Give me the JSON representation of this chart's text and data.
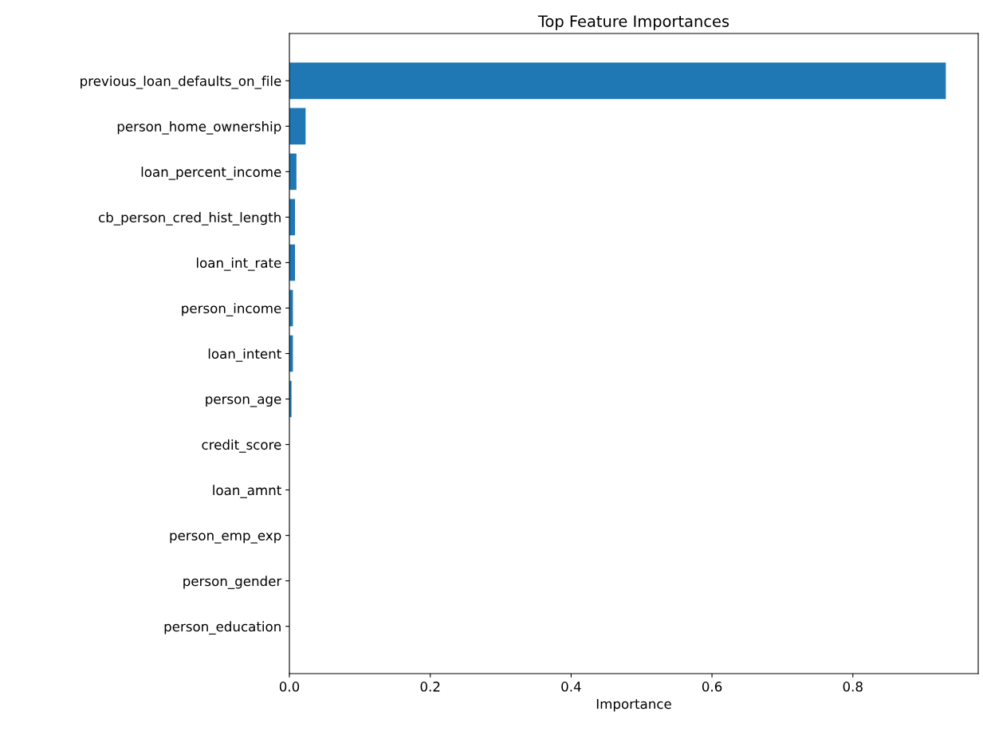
{
  "chart_data": {
    "type": "bar",
    "orientation": "horizontal",
    "title": "Top Feature Importances",
    "xlabel": "Importance",
    "categories": [
      "previous_loan_defaults_on_file",
      "person_home_ownership",
      "loan_percent_income",
      "cb_person_cred_hist_length",
      "loan_int_rate",
      "person_income",
      "loan_intent",
      "person_age",
      "credit_score",
      "loan_amnt",
      "person_emp_exp",
      "person_gender",
      "person_education"
    ],
    "values": [
      0.932,
      0.023,
      0.01,
      0.008,
      0.008,
      0.005,
      0.005,
      0.003,
      0,
      0,
      0,
      0,
      0
    ],
    "color": "#1f77b4",
    "xlim": [
      0,
      0.978
    ],
    "xticks": [
      {
        "value": 0,
        "label": "0.0"
      },
      {
        "value": 0.2,
        "label": "0.2"
      },
      {
        "value": 0.4,
        "label": "0.4"
      },
      {
        "value": 0.6,
        "label": "0.6"
      },
      {
        "value": 0.8,
        "label": "0.8"
      }
    ],
    "grid": false
  }
}
